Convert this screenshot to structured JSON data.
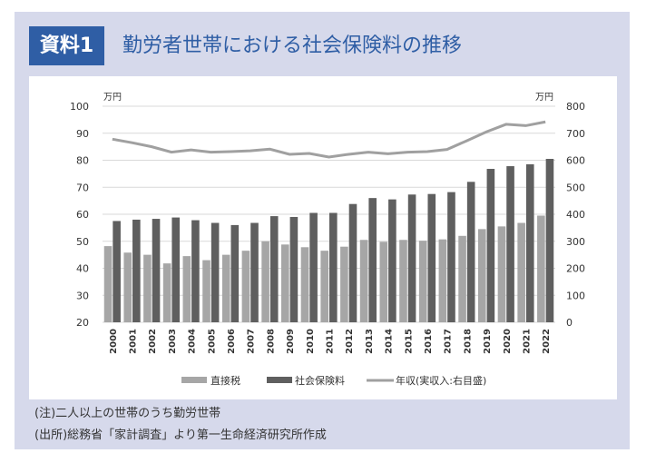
{
  "header": {
    "badge": "資料1",
    "title": "勤労者世帯における社会保険料の推移"
  },
  "notes": [
    "(注)二人以上の世帯のうち勤労世帯",
    "(出所)総務省「家計調査」より第一生命経済研究所作成"
  ],
  "chart_data": {
    "type": "bar",
    "title": "勤労者世帯における社会保険料の推移",
    "categories": [
      "2000",
      "2001",
      "2002",
      "2003",
      "2004",
      "2005",
      "2006",
      "2007",
      "2008",
      "2009",
      "2010",
      "2011",
      "2012",
      "2013",
      "2014",
      "2015",
      "2016",
      "2017",
      "2018",
      "2019",
      "2020",
      "2021",
      "2022"
    ],
    "series": [
      {
        "name": "直接税",
        "type": "bar",
        "axis": "left",
        "color": "#a6a6a6",
        "values": [
          48.2,
          45.8,
          45.0,
          41.8,
          44.5,
          43.0,
          45.0,
          46.5,
          50.0,
          48.8,
          47.8,
          46.5,
          48.0,
          50.5,
          49.8,
          50.5,
          50.2,
          50.7,
          52.0,
          54.5,
          55.5,
          56.8,
          59.5
        ]
      },
      {
        "name": "社会保険料",
        "type": "bar",
        "axis": "left",
        "color": "#5f5f5f",
        "values": [
          57.5,
          58.0,
          58.3,
          58.8,
          57.8,
          56.8,
          56.0,
          56.8,
          59.3,
          59.0,
          60.5,
          60.5,
          63.8,
          66.0,
          65.5,
          67.3,
          67.5,
          68.2,
          72.0,
          76.8,
          77.8,
          78.5,
          80.5
        ]
      },
      {
        "name": "年収(実収入:右目盛)",
        "type": "line",
        "axis": "right",
        "color": "#a0a0a0",
        "values": [
          678,
          665,
          650,
          630,
          638,
          630,
          632,
          635,
          641,
          622,
          625,
          612,
          622,
          630,
          624,
          630,
          632,
          640,
          672,
          705,
          733,
          728,
          742
        ]
      }
    ],
    "left_axis": {
      "unit": "万円",
      "range": [
        20,
        100
      ],
      "ticks": [
        20,
        30,
        40,
        50,
        60,
        70,
        80,
        90,
        100
      ]
    },
    "right_axis": {
      "unit": "万円",
      "range": [
        0,
        800
      ],
      "ticks": [
        0,
        100,
        200,
        300,
        400,
        500,
        600,
        700,
        800
      ]
    },
    "grid": true,
    "legend": "bottom"
  }
}
